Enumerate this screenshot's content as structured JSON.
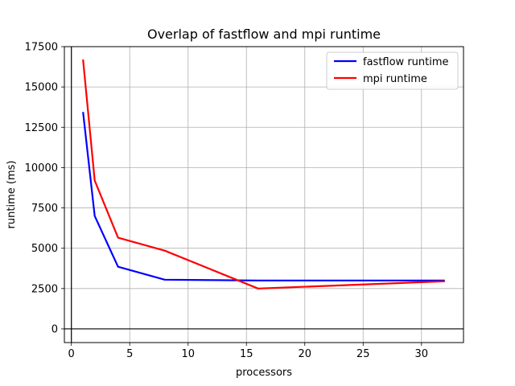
{
  "chart_data": {
    "type": "line",
    "title": "Overlap of fastflow and mpi runtime",
    "xlabel": "processors",
    "ylabel": "runtime (ms)",
    "xlim": [
      -0.6,
      33.6
    ],
    "ylim": [
      -850,
      17500
    ],
    "x_ticks": [
      0,
      5,
      10,
      15,
      20,
      25,
      30
    ],
    "y_ticks": [
      0,
      2500,
      5000,
      7500,
      10000,
      12500,
      15000,
      17500
    ],
    "x_tick_labels": [
      "0",
      "5",
      "10",
      "15",
      "20",
      "25",
      "30"
    ],
    "y_tick_labels": [
      "0",
      "2500",
      "5000",
      "7500",
      "10000",
      "12500",
      "15000",
      "17500"
    ],
    "grid": true,
    "legend_position": "top-right",
    "series": [
      {
        "name": "fastflow runtime",
        "color": "#0000ff",
        "x": [
          1,
          2,
          4,
          8,
          16,
          32
        ],
        "y": [
          13450,
          7000,
          3850,
          3050,
          3000,
          3000
        ]
      },
      {
        "name": "mpi runtime",
        "color": "#ff0000",
        "x": [
          1,
          2,
          4,
          8,
          16,
          32
        ],
        "y": [
          16700,
          9200,
          5650,
          4850,
          2500,
          2950
        ]
      }
    ]
  }
}
